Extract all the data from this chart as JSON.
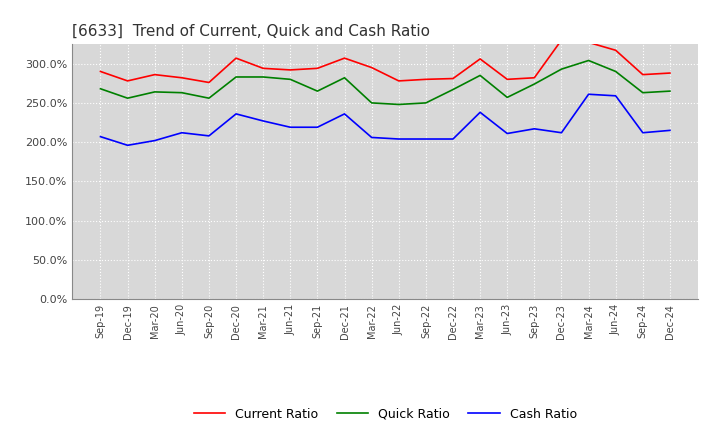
{
  "title": "[6633]  Trend of Current, Quick and Cash Ratio",
  "title_fontsize": 11,
  "title_color": "#333333",
  "background_color": "#ffffff",
  "plot_bg_color": "#e8e8e8",
  "grid_color": "#ffffff",
  "ylim": [
    0.0,
    3.25
  ],
  "yticks": [
    0.0,
    0.5,
    1.0,
    1.5,
    2.0,
    2.5,
    3.0
  ],
  "ytick_labels": [
    "0.0%",
    "50.0%",
    "100.0%",
    "150.0%",
    "200.0%",
    "250.0%",
    "300.0%"
  ],
  "x_labels": [
    "Sep-19",
    "Dec-19",
    "Mar-20",
    "Jun-20",
    "Sep-20",
    "Dec-20",
    "Mar-21",
    "Jun-21",
    "Sep-21",
    "Dec-21",
    "Mar-22",
    "Jun-22",
    "Sep-22",
    "Dec-22",
    "Mar-23",
    "Jun-23",
    "Sep-23",
    "Dec-23",
    "Mar-24",
    "Jun-24",
    "Sep-24",
    "Dec-24"
  ],
  "current_ratio": [
    2.9,
    2.78,
    2.86,
    2.82,
    2.76,
    3.07,
    2.94,
    2.92,
    2.94,
    3.07,
    2.95,
    2.78,
    2.8,
    2.81,
    3.06,
    2.8,
    2.82,
    3.3,
    3.27,
    3.17,
    2.86,
    2.88
  ],
  "quick_ratio": [
    2.68,
    2.56,
    2.64,
    2.63,
    2.56,
    2.83,
    2.83,
    2.8,
    2.65,
    2.82,
    2.5,
    2.48,
    2.5,
    2.67,
    2.85,
    2.57,
    2.74,
    2.93,
    3.04,
    2.9,
    2.63,
    2.65
  ],
  "cash_ratio": [
    2.07,
    1.96,
    2.02,
    2.12,
    2.08,
    2.36,
    2.27,
    2.19,
    2.19,
    2.36,
    2.06,
    2.04,
    2.04,
    2.04,
    2.38,
    2.11,
    2.17,
    2.12,
    2.61,
    2.59,
    2.12,
    2.15
  ],
  "line_colors": {
    "current": "#ff0000",
    "quick": "#008000",
    "cash": "#0000ff"
  },
  "line_width": 1.2,
  "legend_labels": [
    "Current Ratio",
    "Quick Ratio",
    "Cash Ratio"
  ],
  "legend_fontsize": 9
}
